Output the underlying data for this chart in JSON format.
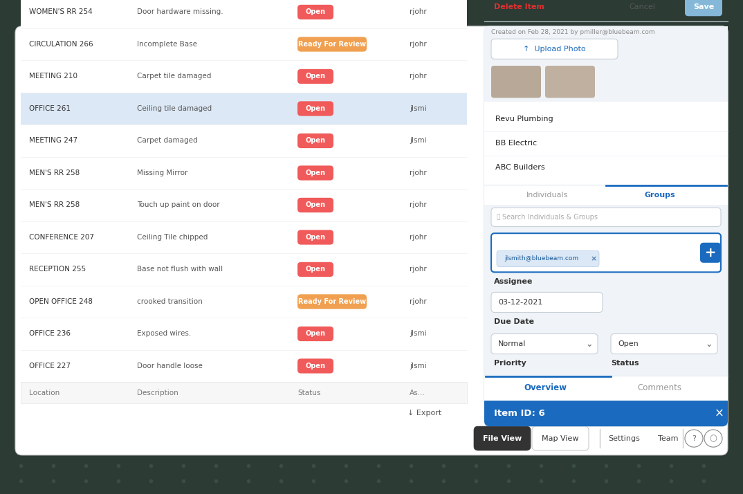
{
  "bg_color": "#2d3b35",
  "dots_color": "#3a4e44",
  "main_card_bg": "#ffffff",
  "nav_bar": {
    "file_view_text": "File View",
    "map_view_text": "Map View",
    "settings_text": "Settings",
    "team_text": "Team"
  },
  "export_text": "↓ Export",
  "table": {
    "cols": [
      "Location",
      "Description",
      "Status",
      "As..."
    ],
    "rows": [
      {
        "loc": "OFFICE 227",
        "desc": "Door handle loose",
        "status": "Open",
        "status_color": "#f05a5a",
        "assignee": "jlsmi",
        "bg": "#ffffff"
      },
      {
        "loc": "OFFICE 236",
        "desc": "Exposed wires.",
        "status": "Open",
        "status_color": "#f05a5a",
        "assignee": "jlsmi",
        "bg": "#ffffff"
      },
      {
        "loc": "OPEN OFFICE 248",
        "desc": "crooked transition",
        "status": "Ready For Review",
        "status_color": "#f0a050",
        "assignee": "rjohr",
        "bg": "#ffffff"
      },
      {
        "loc": "RECEPTION 255",
        "desc": "Base not flush with wall",
        "status": "Open",
        "status_color": "#f05a5a",
        "assignee": "rjohr",
        "bg": "#ffffff"
      },
      {
        "loc": "CONFERENCE 207",
        "desc": "Ceiling Tile chipped",
        "status": "Open",
        "status_color": "#f05a5a",
        "assignee": "rjohr",
        "bg": "#ffffff"
      },
      {
        "loc": "MEN'S RR 258",
        "desc": "Touch up paint on door",
        "status": "Open",
        "status_color": "#f05a5a",
        "assignee": "rjohr",
        "bg": "#ffffff"
      },
      {
        "loc": "MEN'S RR 258",
        "desc": "Missing Mirror",
        "status": "Open",
        "status_color": "#f05a5a",
        "assignee": "rjohr",
        "bg": "#ffffff"
      },
      {
        "loc": "MEETING 247",
        "desc": "Carpet damaged",
        "status": "Open",
        "status_color": "#f05a5a",
        "assignee": "jlsmi",
        "bg": "#ffffff"
      },
      {
        "loc": "OFFICE 261",
        "desc": "Ceiling tile damaged",
        "status": "Open",
        "status_color": "#f05a5a",
        "assignee": "jlsmi",
        "bg": "#dce8f5"
      },
      {
        "loc": "MEETING 210",
        "desc": "Carpet tile damaged",
        "status": "Open",
        "status_color": "#f05a5a",
        "assignee": "rjohr",
        "bg": "#ffffff"
      },
      {
        "loc": "CIRCULATION 266",
        "desc": "Incomplete Base",
        "status": "Ready For Review",
        "status_color": "#f0a050",
        "assignee": "rjohr",
        "bg": "#ffffff"
      },
      {
        "loc": "WOMEN'S RR 254",
        "desc": "Door hardware missing.",
        "status": "Open",
        "status_color": "#f05a5a",
        "assignee": "rjohr",
        "bg": "#ffffff"
      }
    ]
  },
  "panel": {
    "header_bg": "#1a6bbf",
    "header_text": "Item ID: 6",
    "header_text_color": "#ffffff",
    "tab_overview": "Overview",
    "tab_comments": "Comments",
    "tab_color": "#1a6bbf",
    "priority_label": "Priority",
    "priority_value": "Normal",
    "status_label": "Status",
    "status_value": "Open",
    "due_date_label": "Due Date",
    "due_date_value": "03-12-2021",
    "assignee_label": "Assignee",
    "assignee_tag": "jlsmith@bluebeam.com",
    "search_placeholder": "Search Individuals & Groups",
    "tab_individuals": "Individuals",
    "tab_groups": "Groups",
    "groups": [
      "ABC Builders",
      "BB Electric",
      "Revu Plumbing"
    ],
    "upload_text": "↑  Upload Photo",
    "created_text": "Created on Feb 28, 2021 by pmiller@bluebeam.com",
    "delete_text": "Delete Item",
    "cancel_text": "Cancel",
    "save_text": "Save",
    "save_bg": "#85b8d8"
  }
}
